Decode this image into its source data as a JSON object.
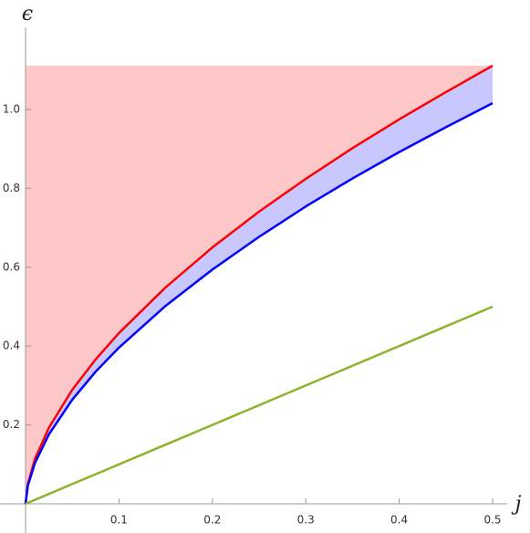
{
  "chart_data": {
    "type": "line",
    "x_label": "j",
    "y_label": "ϵ",
    "x": [
      0,
      0.0025,
      0.01,
      0.025,
      0.05,
      0.075,
      0.1,
      0.15,
      0.2,
      0.25,
      0.3,
      0.35,
      0.4,
      0.45,
      0.5
    ],
    "series": [
      {
        "color": "#ff0000",
        "fill_color": "#ffc8c8",
        "values": [
          0,
          0.05,
          0.113,
          0.193,
          0.289,
          0.366,
          0.433,
          0.549,
          0.65,
          0.741,
          0.824,
          0.902,
          0.975,
          1.044,
          1.111
        ]
      },
      {
        "color": "#0000ff",
        "fill_color": "#c8c8ff",
        "values": [
          0,
          0.046,
          0.103,
          0.176,
          0.264,
          0.335,
          0.396,
          0.502,
          0.594,
          0.677,
          0.754,
          0.825,
          0.892,
          0.955,
          1.016
        ]
      },
      {
        "color": "#8db32c",
        "values": [
          0,
          0.0025,
          0.01,
          0.025,
          0.05,
          0.075,
          0.1,
          0.15,
          0.2,
          0.25,
          0.3,
          0.35,
          0.4,
          0.45,
          0.5
        ]
      }
    ],
    "xlim": [
      0,
      0.5
    ],
    "ylim": [
      0,
      1.111
    ],
    "xticks": [
      0.1,
      0.2,
      0.3,
      0.4,
      0.5
    ],
    "yticks": [
      0.2,
      0.4,
      0.6,
      0.8,
      {
        "value": 1,
        "label": "1.0"
      }
    ]
  }
}
